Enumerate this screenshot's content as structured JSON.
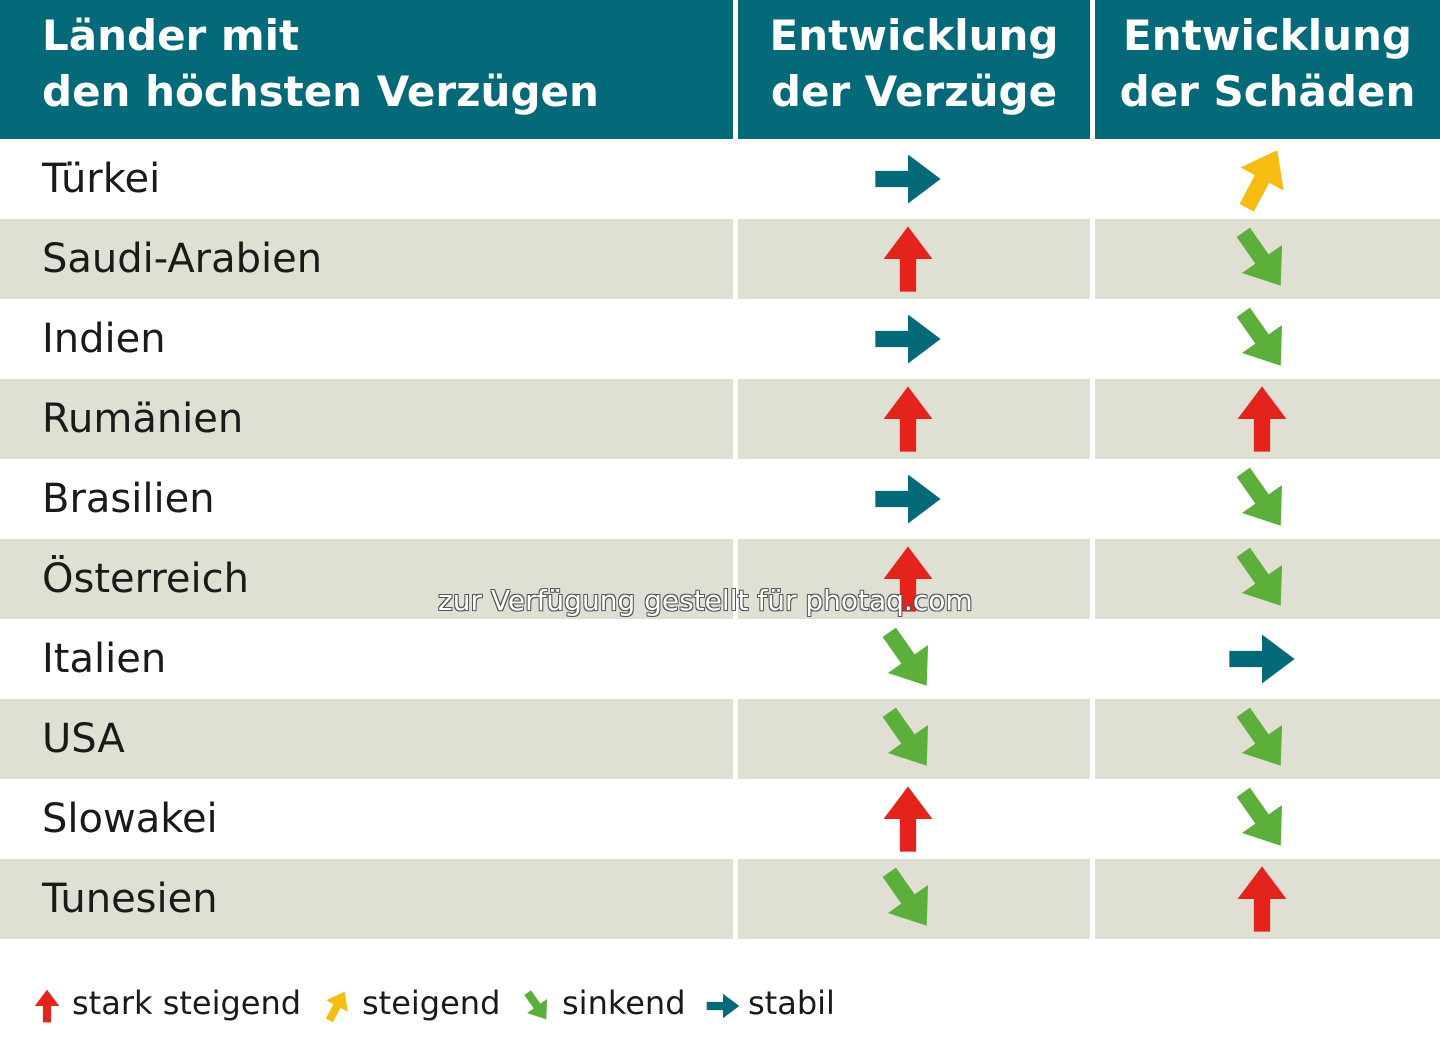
{
  "header": {
    "col_country": [
      "Länder mit",
      "den höchsten Verzügen"
    ],
    "col_delays": [
      "Entwicklung",
      "der Verzüge"
    ],
    "col_damages": [
      "Entwicklung",
      "der Schäden"
    ]
  },
  "chart_data": {
    "type": "table",
    "columns": [
      "Länder mit den höchsten Verzügen",
      "Entwicklung der Verzüge",
      "Entwicklung der Schäden"
    ],
    "rows": [
      {
        "country": "Türkei",
        "delays": "stabil",
        "damages": "steigend"
      },
      {
        "country": "Saudi-Arabien",
        "delays": "stark steigend",
        "damages": "sinkend"
      },
      {
        "country": "Indien",
        "delays": "stabil",
        "damages": "sinkend"
      },
      {
        "country": "Rumänien",
        "delays": "stark steigend",
        "damages": "stark steigend"
      },
      {
        "country": "Brasilien",
        "delays": "stabil",
        "damages": "sinkend"
      },
      {
        "country": "Österreich",
        "delays": "stark steigend",
        "damages": "sinkend"
      },
      {
        "country": "Italien",
        "delays": "sinkend",
        "damages": "stabil"
      },
      {
        "country": "USA",
        "delays": "sinkend",
        "damages": "sinkend"
      },
      {
        "country": "Slowakei",
        "delays": "stark steigend",
        "damages": "sinkend"
      },
      {
        "country": "Tunesien",
        "delays": "sinkend",
        "damages": "stark steigend"
      }
    ]
  },
  "legend": [
    {
      "key": "stark steigend",
      "label": "stark steigend",
      "color": "#e3231c",
      "icon": "arrow-up-icon"
    },
    {
      "key": "steigend",
      "label": "steigend",
      "color": "#f7bc12",
      "icon": "arrow-up-right-icon"
    },
    {
      "key": "sinkend",
      "label": "sinkend",
      "color": "#5daf3b",
      "icon": "arrow-down-right-icon"
    },
    {
      "key": "stabil",
      "label": "stabil",
      "color": "#046978",
      "icon": "arrow-right-icon"
    }
  ],
  "watermark": "zur Verfügung gestellt für photaq.com"
}
